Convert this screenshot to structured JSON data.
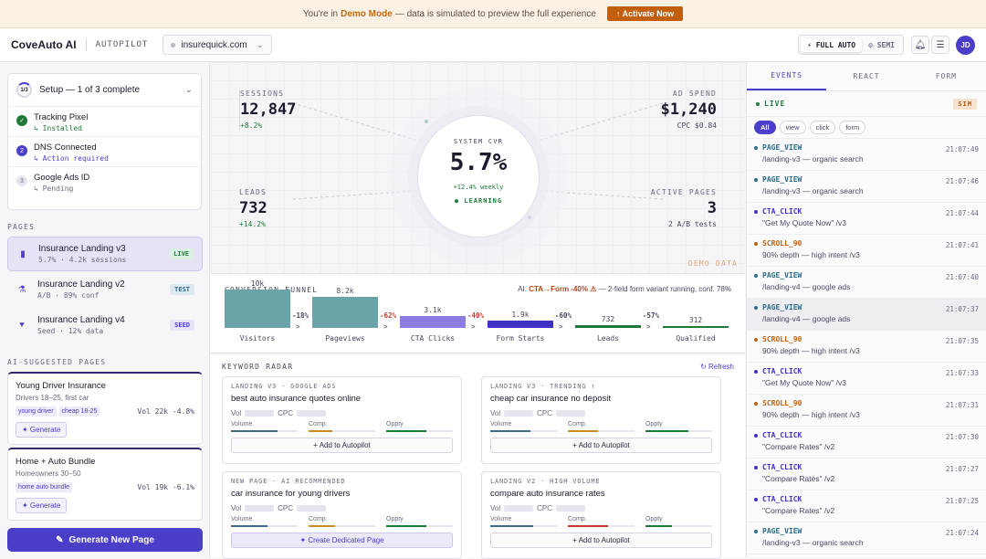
{
  "banner": {
    "prefix": "You're in",
    "mode": "Demo Mode",
    "suffix": "— data is simulated to preview the full experience",
    "cta": "↑ Activate Now"
  },
  "header": {
    "logo": "CoveAuto AI",
    "product": "AUTOPILOT",
    "domain": "insurequick.com",
    "modes": [
      "⚡ FULL AUTO",
      "⚙ SEMI"
    ],
    "active_mode": "⚡ FULL AUTO",
    "avatar": "JD"
  },
  "setup": {
    "progress": "1/3",
    "title": "Setup — 1 of 3 complete",
    "steps": [
      {
        "title": "Tracking Pixel",
        "status": "↳ Installed",
        "state": "done"
      },
      {
        "title": "DNS Connected",
        "status": "↳ Action required",
        "state": "active",
        "num": "2"
      },
      {
        "title": "Google Ads ID",
        "status": "↳ Pending",
        "state": "pending",
        "num": "3"
      }
    ]
  },
  "pages_label": "PAGES",
  "pages": [
    {
      "title": "Insurance Landing v3",
      "meta": "5.7% · 4.2k sessions",
      "badge": "LIVE",
      "icon": "▮"
    },
    {
      "title": "Insurance Landing v2",
      "meta": "A/B · 89% conf",
      "badge": "TEST",
      "icon": "⚗"
    },
    {
      "title": "Insurance Landing v4",
      "meta": "Seed · 12% data",
      "badge": "SEED",
      "icon": "⯆"
    }
  ],
  "ai_label": "AI-SUGGESTED PAGES",
  "suggestions": [
    {
      "title": "Young Driver Insurance",
      "sub": "Drivers 18–25, first car",
      "tags": [
        "young driver",
        "cheap 18-25"
      ],
      "vol": "Vol 22k -4.8%",
      "btn": "✦ Generate"
    },
    {
      "title": "Home + Auto Bundle",
      "sub": "Homeowners 30–50",
      "tags": [
        "home auto bundle"
      ],
      "vol": "Vol 19k -6.1%",
      "btn": "✦ Generate"
    }
  ],
  "generate_btn": "Generate New Page",
  "stats": {
    "sessions": {
      "label": "SESSIONS",
      "value": "12,847",
      "delta": "+8.2%"
    },
    "ad_spend": {
      "label": "AD SPEND",
      "value": "$1,240",
      "sub": "CPC $0.84"
    },
    "leads": {
      "label": "LEADS",
      "value": "732",
      "delta": "+14.2%"
    },
    "active_pages": {
      "label": "ACTIVE PAGES",
      "value": "3",
      "sub": "2 A/B tests"
    },
    "cvr": {
      "label": "SYSTEM CVR",
      "value": "5.7%",
      "weekly": "+12.4% weekly",
      "state": "● LEARNING"
    }
  },
  "demo_data": "DEMO DATA",
  "funnel": {
    "title": "CONVERSION FUNNEL",
    "ai_prefix": "AI:",
    "ai_highlight": "CTA→Form -40% ⚠",
    "ai_text": "— 2-field form variant running, conf. 78%",
    "stages": [
      {
        "label": "Visitors",
        "value": "10k",
        "fraction": 1.0,
        "color": "#6aa4a8"
      },
      {
        "label": "Pageviews",
        "value": "8.2k",
        "fraction": 0.82,
        "color": "#6aa4a8"
      },
      {
        "label": "CTA Clicks",
        "value": "3.1k",
        "fraction": 0.31,
        "color": "#8a7fe0"
      },
      {
        "label": "Form Starts",
        "value": "1.9k",
        "fraction": 0.19,
        "color": "#3f31c4"
      },
      {
        "label": "Leads",
        "value": "732",
        "fraction": 0.07,
        "color": "#1f7a3a"
      },
      {
        "label": "Qualified",
        "value": "312",
        "fraction": 0.03,
        "color": "#1f7a3a"
      }
    ],
    "drops": [
      {
        "text": "-18%",
        "color": "#4a4860"
      },
      {
        "text": "-62%",
        "color": "#c23a2a"
      },
      {
        "text": "-40%",
        "color": "#c23a2a"
      },
      {
        "text": "-60%",
        "color": "#4a4860"
      },
      {
        "text": "-57%",
        "color": "#4a4860"
      }
    ]
  },
  "keyword": {
    "title": "KEYWORD RADAR",
    "refresh": "↻ Refresh",
    "cards": [
      {
        "meta": "LANDING V3 · GOOGLE ADS",
        "title": "best auto insurance quotes online",
        "btn": "+ Add to Autopilot",
        "alt": false,
        "m": [
          0.7,
          0.35,
          0.6
        ],
        "mc": [
          "#3f6b8a",
          "#c98a2a",
          "#1f7a3a"
        ]
      },
      {
        "meta": "LANDING V3 · TRENDING ↑",
        "title": "cheap car insurance no deposit",
        "btn": "+ Add to Autopilot",
        "alt": false,
        "m": [
          0.6,
          0.45,
          0.65
        ],
        "mc": [
          "#3f6b8a",
          "#c98a2a",
          "#1f7a3a"
        ]
      },
      {
        "meta": "NEW PAGE · AI RECOMMENDED",
        "title": "car insurance for young drivers",
        "btn": "✦ Create Dedicated Page",
        "alt": true,
        "m": [
          0.55,
          0.4,
          0.6
        ],
        "mc": [
          "#3f6b8a",
          "#c98a2a",
          "#1f7a3a"
        ]
      },
      {
        "meta": "LANDING V2 · HIGH VOLUME",
        "title": "compare auto insurance rates",
        "btn": "+ Add to Autopilot",
        "alt": false,
        "m": [
          0.65,
          0.6,
          0.4
        ],
        "mc": [
          "#3f6b8a",
          "#c23a2a",
          "#1f7a3a"
        ]
      }
    ],
    "vol_label": "Vol",
    "cpc_label": "CPC",
    "meter_labels": [
      "Volume",
      "Comp.",
      "Oppty"
    ]
  },
  "right": {
    "tabs": [
      "EVENTS",
      "REACT",
      "FORM"
    ],
    "live": "LIVE",
    "sim": "SIM",
    "filters": [
      "All",
      "view",
      "click",
      "form"
    ],
    "events": [
      {
        "type": "PAGE_VIEW",
        "desc": "/landing-v3 — organic search",
        "time": "21:07:49",
        "color": "#2a6b8a"
      },
      {
        "type": "PAGE_VIEW",
        "desc": "/landing-v3 — organic search",
        "time": "21:07:46",
        "color": "#2a6b8a"
      },
      {
        "type": "CTA_CLICK",
        "desc": "\"Get My Quote Now\" /v3",
        "time": "21:07:44",
        "color": "#3f31c4"
      },
      {
        "type": "SCROLL_90",
        "desc": "90% depth — high intent /v3",
        "time": "21:07:41",
        "color": "#c25f0c"
      },
      {
        "type": "PAGE_VIEW",
        "desc": "/landing-v4 — google ads",
        "time": "21:07:40",
        "color": "#2a6b8a"
      },
      {
        "type": "PAGE_VIEW",
        "desc": "/landing-v4 — google ads",
        "time": "21:07:37",
        "color": "#2a6b8a",
        "hl": true
      },
      {
        "type": "SCROLL_90",
        "desc": "90% depth — high intent /v3",
        "time": "21:07:35",
        "color": "#c25f0c"
      },
      {
        "type": "CTA_CLICK",
        "desc": "\"Get My Quote Now\" /v3",
        "time": "21:07:33",
        "color": "#3f31c4"
      },
      {
        "type": "SCROLL_90",
        "desc": "90% depth — high intent /v3",
        "time": "21:07:31",
        "color": "#c25f0c"
      },
      {
        "type": "CTA_CLICK",
        "desc": "\"Compare Rates\" /v2",
        "time": "21:07:30",
        "color": "#3f31c4"
      },
      {
        "type": "CTA_CLICK",
        "desc": "\"Compare Rates\" /v2",
        "time": "21:07:27",
        "color": "#3f31c4"
      },
      {
        "type": "CTA_CLICK",
        "desc": "\"Compare Rates\" /v2",
        "time": "21:07:25",
        "color": "#3f31c4"
      },
      {
        "type": "PAGE_VIEW",
        "desc": "/landing-v3 — organic search",
        "time": "21:07:24",
        "color": "#2a6b8a"
      }
    ]
  }
}
